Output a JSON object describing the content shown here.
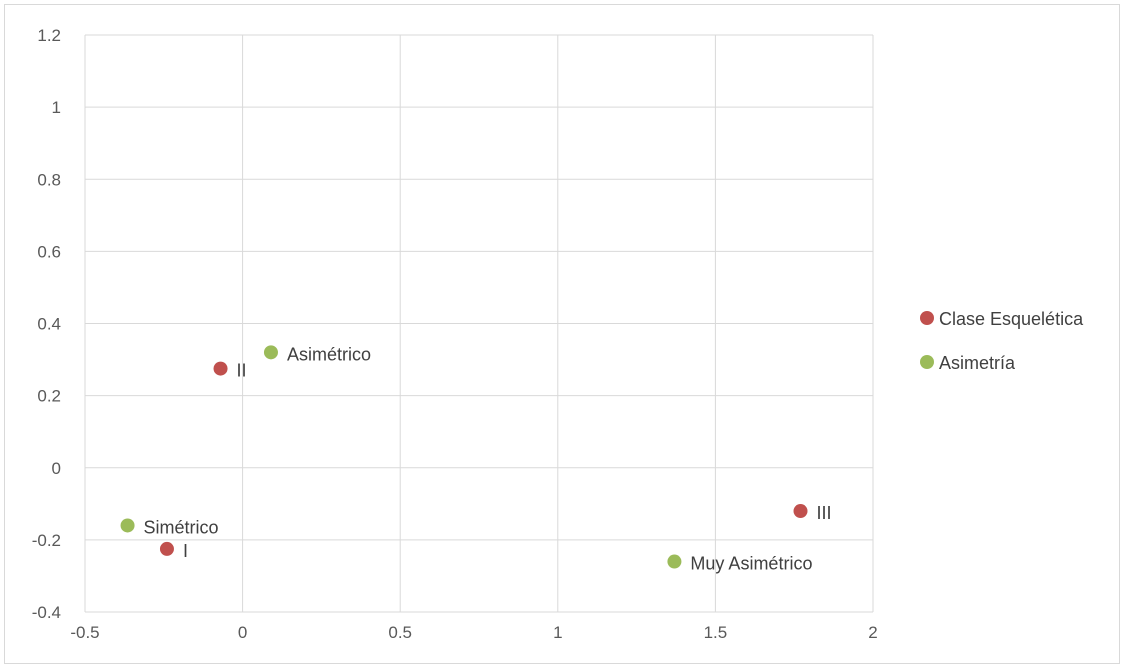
{
  "chart_data": {
    "type": "scatter",
    "title": "",
    "xlabel": "",
    "ylabel": "",
    "xlim": [
      -0.5,
      2
    ],
    "ylim": [
      -0.4,
      1.2
    ],
    "x_ticks": [
      "-0.5",
      "0",
      "0.5",
      "1",
      "1.5",
      "2"
    ],
    "y_ticks": [
      "-0.4",
      "-0.2",
      "0",
      "0.2",
      "0.4",
      "0.6",
      "0.8",
      "1",
      "1.2"
    ],
    "grid": true,
    "legend_position": "right",
    "series": [
      {
        "name": "Clase Esquelética",
        "color": "#c0504d",
        "points": [
          {
            "x": -0.24,
            "y": -0.225,
            "label": "I"
          },
          {
            "x": -0.07,
            "y": 0.275,
            "label": "II"
          },
          {
            "x": 1.77,
            "y": -0.12,
            "label": "III"
          }
        ]
      },
      {
        "name": "Asimetría",
        "color": "#9bbb59",
        "points": [
          {
            "x": -0.365,
            "y": -0.16,
            "label": "Simétrico"
          },
          {
            "x": 0.09,
            "y": 0.32,
            "label": "Asimétrico"
          },
          {
            "x": 1.37,
            "y": -0.26,
            "label": "Muy Asimétrico"
          }
        ]
      }
    ]
  }
}
